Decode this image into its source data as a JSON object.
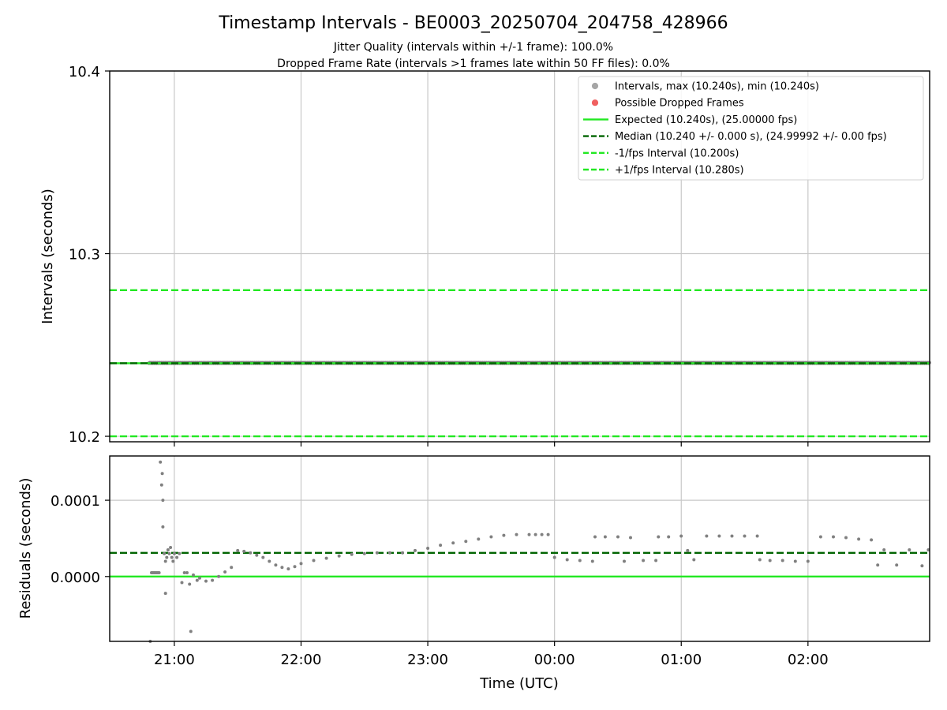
{
  "chart_data": [
    {
      "type": "scatter",
      "title": "Timestamp Intervals - BE0003_20250704_204758_428966",
      "subtitle_lines": [
        "Jitter Quality (intervals within +/-1 frame): 100.0%",
        "Dropped Frame Rate (intervals >1 frames late within 50 FF files): 0.0%"
      ],
      "ylabel": "Intervals (seconds)",
      "ylim": [
        10.197,
        10.4
      ],
      "yticks": [
        10.2,
        10.3,
        10.4
      ],
      "ytick_labels": [
        "10.2",
        "10.3",
        "10.4"
      ],
      "xlim_hours": [
        20.49,
        26.96
      ],
      "xticks_hours": [
        21,
        22,
        23,
        24,
        25,
        26
      ],
      "grid": true,
      "legend_position": "top-right",
      "legend": [
        {
          "label": "Intervals, max (10.240s), min (10.240s)",
          "kind": "marker",
          "color": "#a6a6a6"
        },
        {
          "label": "Possible Dropped Frames",
          "kind": "marker",
          "color": "#f06060"
        },
        {
          "label": "Expected (10.240s), (25.00000 fps)",
          "kind": "solid",
          "color": "#22e822"
        },
        {
          "label": "Median (10.240 +/- 0.000 s), (24.99992 +/- 0.00 fps)",
          "kind": "dashed",
          "color": "#006400"
        },
        {
          "label": "-1/fps Interval (10.200s)",
          "kind": "dashed",
          "color": "#22e822"
        },
        {
          "label": "+1/fps Interval (10.280s)",
          "kind": "dashed",
          "color": "#22e822"
        }
      ],
      "series": [
        {
          "name": "Intervals",
          "color": "#808080",
          "x_start_hours": 20.8,
          "x_end_hours": 26.96,
          "y": 10.24
        }
      ],
      "hlines": [
        {
          "y": 10.24,
          "color": "#22e822",
          "style": "solid"
        },
        {
          "y": 10.24,
          "color": "#006400",
          "style": "dashed"
        },
        {
          "y": 10.2,
          "color": "#22e822",
          "style": "dashed"
        },
        {
          "y": 10.28,
          "color": "#22e822",
          "style": "dashed"
        }
      ]
    },
    {
      "type": "scatter",
      "xlabel": "Time (UTC)",
      "ylabel": "Residuals (seconds)",
      "ylim": [
        -8.5e-05,
        0.000158
      ],
      "yticks": [
        0.0,
        0.0001
      ],
      "ytick_labels": [
        "0.0000",
        "0.0001"
      ],
      "xlim_hours": [
        20.49,
        26.96
      ],
      "xticks_hours": [
        21,
        22,
        23,
        24,
        25,
        26
      ],
      "xtick_labels": [
        "21:00",
        "22:00",
        "23:00",
        "00:00",
        "01:00",
        "02:00"
      ],
      "grid": true,
      "hlines": [
        {
          "y": 0.0,
          "color": "#22e822",
          "style": "solid"
        },
        {
          "y": 3.1e-05,
          "color": "#006400",
          "style": "dashed"
        }
      ],
      "series": [
        {
          "name": "Residuals",
          "color": "#808080",
          "x": [
            20.81,
            20.82,
            20.83,
            20.84,
            20.85,
            20.86,
            20.87,
            20.88,
            20.89,
            20.9,
            20.905,
            20.91,
            20.91,
            20.92,
            20.93,
            20.93,
            20.94,
            20.95,
            20.96,
            20.97,
            20.98,
            20.99,
            21.0,
            21.02,
            21.04,
            21.06,
            21.08,
            21.1,
            21.12,
            21.13,
            21.15,
            21.18,
            21.2,
            21.25,
            21.3,
            21.35,
            21.4,
            21.45,
            21.5,
            21.55,
            21.6,
            21.65,
            21.7,
            21.75,
            21.8,
            21.85,
            21.9,
            21.95,
            22.0,
            22.1,
            22.2,
            22.3,
            22.4,
            22.5,
            22.6,
            22.7,
            22.8,
            22.9,
            23.0,
            23.1,
            23.2,
            23.3,
            23.4,
            23.5,
            23.6,
            23.7,
            23.8,
            23.85,
            23.9,
            23.95,
            24.0,
            24.1,
            24.2,
            24.3,
            24.32,
            24.4,
            24.5,
            24.55,
            24.6,
            24.7,
            24.8,
            24.82,
            24.9,
            25.0,
            25.05,
            25.1,
            25.2,
            25.3,
            25.4,
            25.5,
            25.6,
            25.62,
            25.7,
            25.8,
            25.9,
            26.0,
            26.1,
            26.2,
            26.3,
            26.4,
            26.5,
            26.55,
            26.6,
            26.7,
            26.8,
            26.9,
            26.95
          ],
          "y": [
            -8.5e-05,
            5e-06,
            5e-06,
            5e-06,
            5e-06,
            5e-06,
            5e-06,
            5e-06,
            0.00015,
            0.00012,
            0.000135,
            0.0001,
            6.5e-05,
            3e-05,
            -2.2e-05,
            2e-05,
            2.5e-05,
            3.5e-05,
            3e-05,
            3.8e-05,
            2.5e-05,
            2e-05,
            3e-05,
            2.5e-05,
            3e-05,
            -8e-06,
            5e-06,
            5e-06,
            -1e-05,
            -7.2e-05,
            2e-06,
            -5e-06,
            -2e-06,
            -6e-06,
            -5e-06,
            0.0,
            6e-06,
            1.2e-05,
            3.4e-05,
            3.3e-05,
            3.1e-05,
            2.8e-05,
            2.5e-05,
            2e-05,
            1.5e-05,
            1.2e-05,
            1e-05,
            1.3e-05,
            1.7e-05,
            2.1e-05,
            2.4e-05,
            2.7e-05,
            2.9e-05,
            3e-05,
            3.1e-05,
            3.1e-05,
            3.1e-05,
            3.4e-05,
            3.7e-05,
            4.1e-05,
            4.4e-05,
            4.6e-05,
            4.9e-05,
            5.2e-05,
            5.4e-05,
            5.5e-05,
            5.5e-05,
            5.5e-05,
            5.5e-05,
            5.5e-05,
            2.5e-05,
            2.2e-05,
            2.1e-05,
            2e-05,
            5.2e-05,
            5.2e-05,
            5.2e-05,
            2e-05,
            5.1e-05,
            2.1e-05,
            2.1e-05,
            5.2e-05,
            5.2e-05,
            5.3e-05,
            3.4e-05,
            2.2e-05,
            5.3e-05,
            5.3e-05,
            5.3e-05,
            5.3e-05,
            5.3e-05,
            2.2e-05,
            2.1e-05,
            2.1e-05,
            2e-05,
            2e-05,
            5.2e-05,
            5.2e-05,
            5.1e-05,
            4.9e-05,
            4.8e-05,
            1.5e-05,
            3.5e-05,
            1.5e-05,
            3.5e-05,
            1.4e-05,
            3.5e-05
          ]
        }
      ]
    }
  ]
}
